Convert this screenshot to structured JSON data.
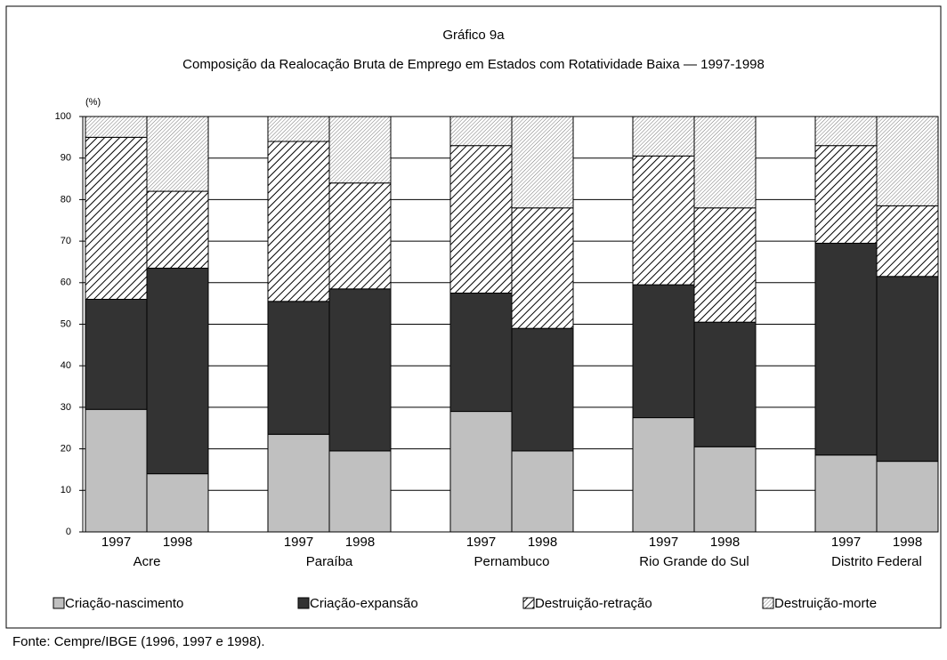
{
  "chart_data": {
    "type": "stacked_bar",
    "title": "Gráfico 9a",
    "subtitle": "Composição da Realocação Bruta de Emprego em Estados com Rotatividade Baixa — 1997-1998",
    "y_label": "(%)",
    "source": "Fonte: Cempre/IBGE (1996, 1997 e 1998).",
    "groups": [
      "Acre",
      "Paraíba",
      "Pernambuco",
      "Rio Grande do  Sul",
      "Distrito Federal"
    ],
    "categories": [
      "1997",
      "1998",
      "1997",
      "1998",
      "1997",
      "1998",
      "1997",
      "1998",
      "1997",
      "1998"
    ],
    "series": [
      {
        "name": "Criação-nascimento",
        "color": "#c0c0c0",
        "values": [
          29.5,
          14,
          23.5,
          19.5,
          29,
          19.5,
          27.5,
          20.5,
          18.5,
          17
        ]
      },
      {
        "name": "Criação-expansão",
        "color": "#333333",
        "values": [
          26.5,
          49.5,
          32,
          39,
          28.5,
          29.5,
          32,
          30,
          51,
          44.5
        ]
      },
      {
        "name": "Destruição-retração",
        "color": "#000000",
        "pattern": "wide",
        "values": [
          39,
          18.5,
          38.5,
          25.5,
          35.5,
          29,
          31,
          27.5,
          23.5,
          17
        ]
      },
      {
        "name": "Destruição-morte",
        "color": "#000000",
        "pattern": "fine",
        "values": [
          5,
          18,
          6,
          16,
          7,
          22,
          9.5,
          22,
          7,
          21.5
        ]
      }
    ],
    "ylim": [
      0,
      100
    ],
    "yticks": [
      0,
      10,
      20,
      30,
      40,
      50,
      60,
      70,
      80,
      90,
      100
    ],
    "grid": true
  }
}
